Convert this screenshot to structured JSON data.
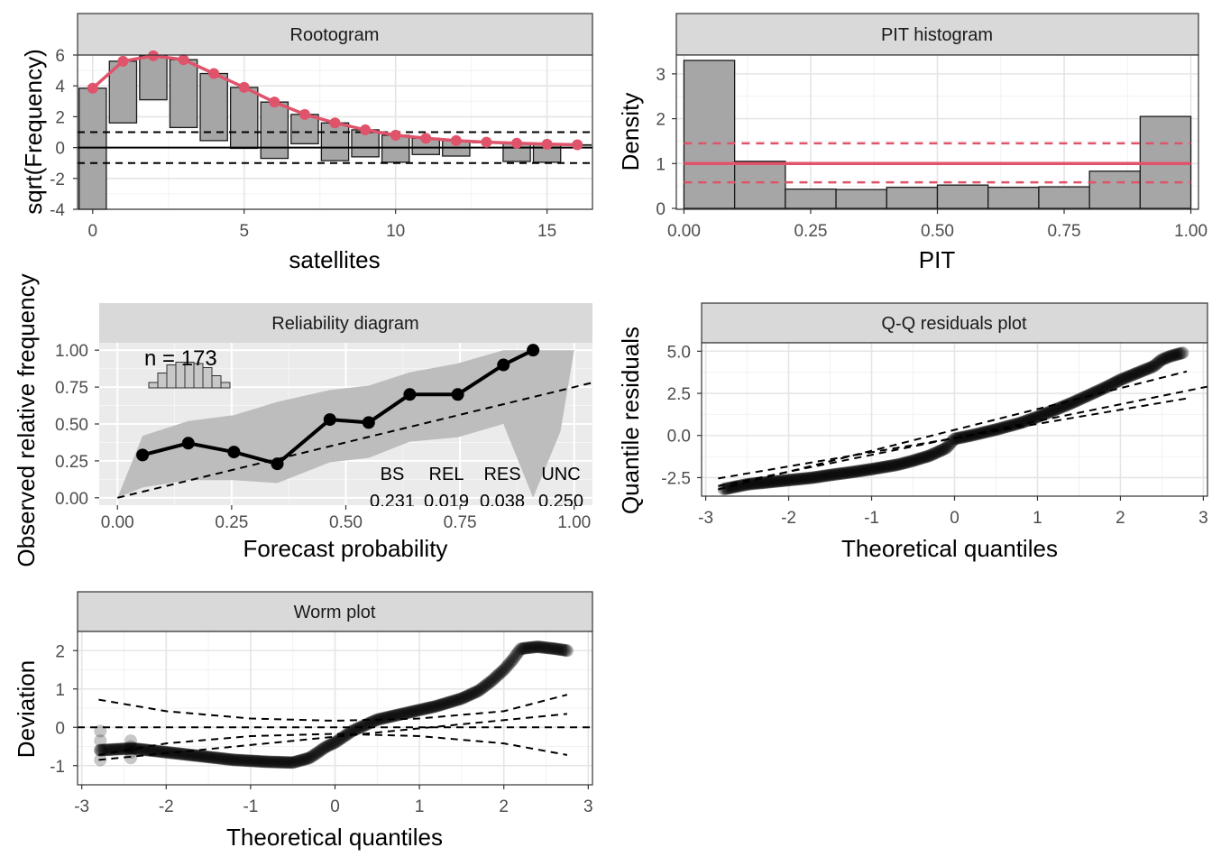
{
  "chart_data": [
    {
      "type": "bar",
      "title": "Rootogram",
      "xlabel": "satellites",
      "ylabel": "sqrt(Frequency)",
      "xlim": [
        -0.5,
        16.5
      ],
      "ylim": [
        -4,
        6
      ],
      "xticks": [
        "0",
        "5",
        "10",
        "15"
      ],
      "yticks": [
        "-4",
        "-2",
        "0",
        "2",
        "4",
        "6"
      ],
      "x": [
        0,
        1,
        2,
        3,
        4,
        5,
        6,
        7,
        8,
        9,
        10,
        11,
        12,
        13,
        14,
        15,
        16
      ],
      "expected": [
        3.85,
        5.6,
        5.95,
        5.7,
        4.8,
        3.9,
        2.95,
        2.15,
        1.6,
        1.15,
        0.8,
        0.6,
        0.45,
        0.35,
        0.28,
        0.22,
        0.18
      ],
      "bar_bottom": [
        -4.0,
        1.6,
        3.1,
        1.3,
        0.45,
        -0.05,
        -0.7,
        0.25,
        -0.85,
        -0.6,
        -0.95,
        -0.45,
        -0.55,
        0.35,
        -0.9,
        -0.95,
        0.18
      ],
      "reference_lines": [
        1,
        0,
        -1
      ],
      "colors": {
        "line": "#DF536B",
        "bar": "#A6A6A6"
      }
    },
    {
      "type": "bar",
      "title": "PIT histogram",
      "xlabel": "PIT",
      "ylabel": "Density",
      "xlim": [
        0,
        1
      ],
      "ylim": [
        0,
        3.4
      ],
      "xticks": [
        "0.00",
        "0.25",
        "0.50",
        "0.75",
        "1.00"
      ],
      "yticks": [
        "0",
        "1",
        "2",
        "3"
      ],
      "bin_width": 0.1,
      "density": [
        3.3,
        1.05,
        0.43,
        0.42,
        0.47,
        0.52,
        0.47,
        0.48,
        0.83,
        2.05
      ],
      "reference": 1.0,
      "confidence_band": [
        0.58,
        1.45
      ],
      "colors": {
        "line": "#DF536B",
        "bar": "#A6A6A6"
      }
    },
    {
      "type": "line",
      "title": "Reliability diagram",
      "xlabel": "Forecast probability",
      "ylabel": "Observed relative frequency",
      "xlim": [
        0,
        1
      ],
      "ylim": [
        0,
        1
      ],
      "xticks": [
        "0.00",
        "0.25",
        "0.50",
        "0.75",
        "1.00"
      ],
      "yticks": [
        "0.00",
        "0.25",
        "0.50",
        "0.75",
        "1.00"
      ],
      "x": [
        0.055,
        0.155,
        0.255,
        0.35,
        0.465,
        0.55,
        0.64,
        0.745,
        0.845,
        0.91
      ],
      "y": [
        0.29,
        0.37,
        0.31,
        0.23,
        0.53,
        0.51,
        0.7,
        0.7,
        0.9,
        1.0
      ],
      "band_upper": [
        0.42,
        0.52,
        0.56,
        0.65,
        0.73,
        0.76,
        0.85,
        0.91,
        1.0,
        1.0
      ],
      "band_lower": [
        0.07,
        0.12,
        0.12,
        0.1,
        0.24,
        0.27,
        0.38,
        0.41,
        0.5,
        0.0
      ],
      "annotation": "n = 173",
      "score_labels": [
        "BS",
        "REL",
        "RES",
        "UNC"
      ],
      "score_values": [
        "0.231",
        "0.019",
        "0.038",
        "0.250"
      ]
    },
    {
      "type": "scatter",
      "title": "Q-Q residuals plot",
      "xlabel": "Theoretical quantiles",
      "ylabel": "Quantile residuals",
      "xlim": [
        -3,
        3
      ],
      "ylim": [
        -3.6,
        5.5
      ],
      "xticks": [
        "-3",
        "-2",
        "-1",
        "0",
        "1",
        "2",
        "3"
      ],
      "yticks": [
        "-2.5",
        "0.0",
        "2.5",
        "5.0"
      ],
      "curve_x": [
        -2.8,
        -2.5,
        -2.2,
        -2.0,
        -1.7,
        -1.5,
        -1.2,
        -1.0,
        -0.7,
        -0.5,
        -0.3,
        -0.1,
        0.0,
        0.2,
        0.5,
        0.8,
        1.0,
        1.2,
        1.4,
        1.6,
        1.8,
        2.0,
        2.2,
        2.4,
        2.5,
        2.6,
        2.75
      ],
      "curve_y": [
        -3.2,
        -2.9,
        -2.75,
        -2.65,
        -2.5,
        -2.35,
        -2.15,
        -2.0,
        -1.75,
        -1.5,
        -1.2,
        -0.75,
        -0.2,
        0.0,
        0.35,
        0.75,
        1.1,
        1.5,
        1.9,
        2.35,
        2.8,
        3.3,
        3.7,
        4.1,
        4.5,
        4.7,
        4.9
      ],
      "reference_slopes": [
        1,
        1.5,
        2.3
      ],
      "reference_intercept": -0.2
    },
    {
      "type": "scatter",
      "title": "Worm plot",
      "xlabel": "Theoretical quantiles",
      "ylabel": "Deviation",
      "xlim": [
        -3,
        3
      ],
      "ylim": [
        -1.5,
        2.5
      ],
      "xticks": [
        "-3",
        "-2",
        "-1",
        "0",
        "1",
        "2",
        "3"
      ],
      "yticks": [
        "-1",
        "0",
        "1",
        "2"
      ],
      "curve_x": [
        -2.8,
        -2.4,
        -2.0,
        -1.6,
        -1.2,
        -0.8,
        -0.5,
        -0.3,
        -0.1,
        0.0,
        0.2,
        0.5,
        0.8,
        1.0,
        1.2,
        1.5,
        1.7,
        1.85,
        2.0,
        2.1,
        2.2,
        2.4,
        2.6,
        2.75
      ],
      "curve_y": [
        -0.6,
        -0.55,
        -0.65,
        -0.75,
        -0.85,
        -0.9,
        -0.92,
        -0.8,
        -0.5,
        -0.4,
        -0.1,
        0.2,
        0.35,
        0.45,
        0.55,
        0.75,
        0.95,
        1.2,
        1.5,
        1.75,
        2.05,
        2.1,
        2.05,
        2.0
      ],
      "band_x": [
        -2.8,
        -2.0,
        -1.0,
        0.0,
        1.0,
        2.0,
        2.75
      ],
      "band_upper": [
        0.72,
        0.42,
        0.23,
        0.17,
        0.23,
        0.42,
        0.85
      ],
      "band_lower": [
        -0.72,
        -0.42,
        -0.23,
        -0.17,
        -0.23,
        -0.42,
        -0.72
      ],
      "trend_line": [
        -0.85,
        0.35
      ]
    }
  ]
}
